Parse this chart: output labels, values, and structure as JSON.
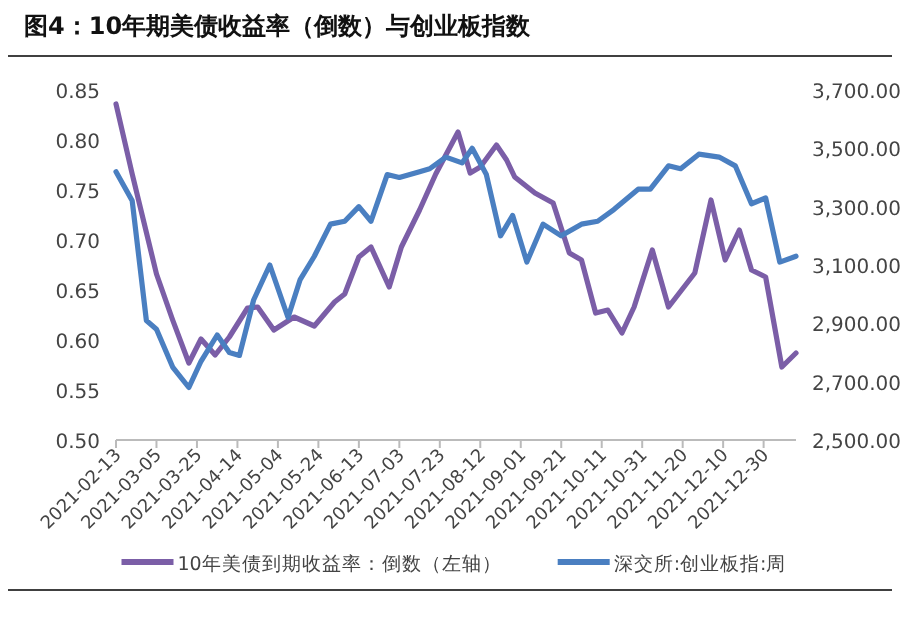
{
  "chart_data": {
    "type": "line",
    "title": "图4：10年期美债收益率（倒数）与创业板指数",
    "xlim": [
      "2021-02-13",
      "2022-01-15"
    ],
    "xticks": [
      "2021-02-13",
      "2021-03-05",
      "2021-03-25",
      "2021-04-14",
      "2021-05-04",
      "2021-05-24",
      "2021-06-13",
      "2021-07-03",
      "2021-07-23",
      "2021-08-12",
      "2021-09-01",
      "2021-09-21",
      "2021-10-11",
      "2021-10-31",
      "2021-11-20",
      "2021-12-10",
      "2021-12-30"
    ],
    "ylim": [
      0.5,
      0.85
    ],
    "yticks": [
      {
        "value": 0.5,
        "label": "0.50"
      },
      {
        "value": 0.55,
        "label": "0.55"
      },
      {
        "value": 0.6,
        "label": "0.60"
      },
      {
        "value": 0.65,
        "label": "0.65"
      },
      {
        "value": 0.7,
        "label": "0.70"
      },
      {
        "value": 0.75,
        "label": "0.75"
      },
      {
        "value": 0.8,
        "label": "0.80"
      },
      {
        "value": 0.85,
        "label": "0.85"
      }
    ],
    "y2lim": [
      2500,
      3700
    ],
    "y2ticks": [
      {
        "value": 2500,
        "label": "2,500.00"
      },
      {
        "value": 2700,
        "label": "2,700.00"
      },
      {
        "value": 2900,
        "label": "2,900.00"
      },
      {
        "value": 3100,
        "label": "3,100.00"
      },
      {
        "value": 3300,
        "label": "3,300.00"
      },
      {
        "value": 3500,
        "label": "3,500.00"
      },
      {
        "value": 3700,
        "label": "3,700.00"
      }
    ],
    "legend": "bottom",
    "grid": false,
    "marker": "none",
    "line_style": "solid",
    "series": [
      {
        "name": "10年美债到期收益率：倒数（左轴）",
        "color": "#7b5ea7",
        "x": [
          "2021-02-13",
          "2021-02-21",
          "2021-03-05",
          "2021-03-13",
          "2021-03-21",
          "2021-03-27",
          "2021-04-03",
          "2021-04-10",
          "2021-04-19",
          "2021-04-24",
          "2021-05-02",
          "2021-05-12",
          "2021-05-22",
          "2021-06-01",
          "2021-06-06",
          "2021-06-13",
          "2021-06-19",
          "2021-06-28",
          "2021-07-04",
          "2021-07-13",
          "2021-07-21",
          "2021-08-01",
          "2021-08-07",
          "2021-08-12",
          "2021-08-20",
          "2021-08-25",
          "2021-08-29",
          "2021-09-08",
          "2021-09-17",
          "2021-09-25",
          "2021-10-01",
          "2021-10-08",
          "2021-10-14",
          "2021-10-21",
          "2021-10-27",
          "2021-11-05",
          "2021-11-13",
          "2021-11-26",
          "2021-12-04",
          "2021-12-11",
          "2021-12-18",
          "2021-12-24",
          "2021-12-31",
          "2022-01-08",
          "2022-01-15"
        ],
        "values": [
          0.836,
          0.766,
          0.666,
          0.62,
          0.577,
          0.601,
          0.585,
          0.603,
          0.632,
          0.633,
          0.61,
          0.623,
          0.614,
          0.638,
          0.646,
          0.683,
          0.693,
          0.653,
          0.693,
          0.73,
          0.766,
          0.808,
          0.767,
          0.773,
          0.795,
          0.78,
          0.763,
          0.747,
          0.737,
          0.687,
          0.68,
          0.627,
          0.63,
          0.607,
          0.633,
          0.69,
          0.633,
          0.667,
          0.74,
          0.68,
          0.71,
          0.67,
          0.663,
          0.573,
          0.587
        ]
      },
      {
        "name": "深交所:创业板指:周",
        "color": "#4a7fc1",
        "axis": "y2",
        "x": [
          "2021-02-13",
          "2021-02-21",
          "2021-02-28",
          "2021-03-05",
          "2021-03-13",
          "2021-03-21",
          "2021-03-27",
          "2021-04-04",
          "2021-04-10",
          "2021-04-15",
          "2021-04-22",
          "2021-04-30",
          "2021-05-09",
          "2021-05-15",
          "2021-05-22",
          "2021-05-30",
          "2021-06-06",
          "2021-06-13",
          "2021-06-19",
          "2021-06-27",
          "2021-07-03",
          "2021-07-13",
          "2021-07-18",
          "2021-07-26",
          "2021-08-03",
          "2021-08-08",
          "2021-08-15",
          "2021-08-22",
          "2021-08-28",
          "2021-09-04",
          "2021-09-12",
          "2021-09-21",
          "2021-10-01",
          "2021-10-09",
          "2021-10-17",
          "2021-10-29",
          "2021-11-04",
          "2021-11-13",
          "2021-11-19",
          "2021-11-28",
          "2021-12-08",
          "2021-12-16",
          "2021-12-24",
          "2021-12-31",
          "2022-01-07",
          "2022-01-15"
        ],
        "values": [
          3420,
          3320,
          2910,
          2880,
          2750,
          2680,
          2770,
          2860,
          2800,
          2790,
          2980,
          3100,
          2920,
          3050,
          3130,
          3240,
          3250,
          3300,
          3250,
          3410,
          3400,
          3420,
          3430,
          3470,
          3450,
          3500,
          3410,
          3200,
          3270,
          3110,
          3240,
          3200,
          3240,
          3250,
          3290,
          3360,
          3360,
          3440,
          3430,
          3480,
          3470,
          3440,
          3310,
          3330,
          3110,
          3130
        ]
      }
    ]
  }
}
